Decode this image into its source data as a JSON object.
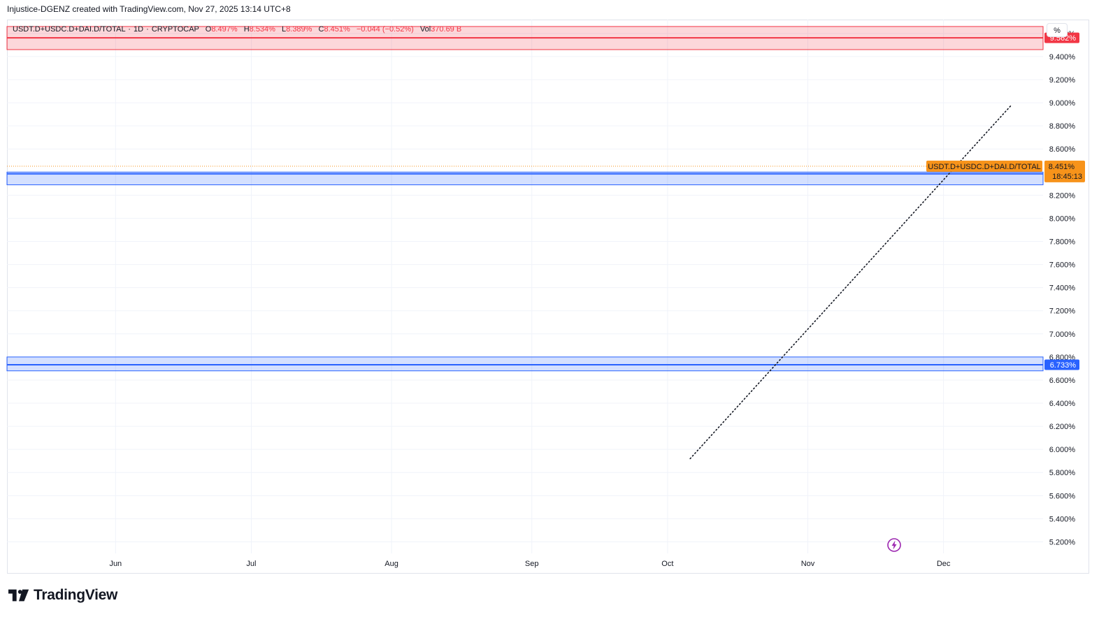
{
  "header": {
    "credit": "Injustice-DGENZ created with TradingView.com, Nov 27, 2025 13:14 UTC+8"
  },
  "legend": {
    "symbol": "USDT.D+USDC.D+DAI.D/TOTAL",
    "interval": "1D",
    "exchange": "CRYPTOCAP",
    "open_label": "O",
    "open_value": "8.497%",
    "high_label": "H",
    "high_value": "8.534%",
    "low_label": "L",
    "low_value": "8.389%",
    "close_label": "C",
    "close_value": "8.451%",
    "change": "−0.044 (−0.52%)",
    "vol_label": "Vol",
    "vol_value": "370.69 B"
  },
  "scale_unit": "%",
  "footer": {
    "brand": "TradingView"
  },
  "colors": {
    "up": "#089981",
    "down": "#f23645",
    "resistance_zone": "#f23645",
    "support_zone": "#2962ff",
    "price_tag": "#f7931a",
    "grid": "#f0f3fa"
  },
  "chart_data": {
    "type": "candlestick",
    "ylim": [
      5.1,
      9.72
    ],
    "y_ticks": [
      "5.200%",
      "5.400%",
      "5.600%",
      "5.800%",
      "6.000%",
      "6.200%",
      "6.400%",
      "6.600%",
      "6.800%",
      "7.000%",
      "7.200%",
      "7.400%",
      "7.600%",
      "7.800%",
      "8.000%",
      "8.200%",
      "8.400%",
      "8.600%",
      "8.800%",
      "9.000%",
      "9.200%",
      "9.400%",
      "9.600%"
    ],
    "x_ticks": [
      "Jun",
      "Jul",
      "Aug",
      "Sep",
      "Oct",
      "Nov",
      "Dec"
    ],
    "x_start": "2025-05-08",
    "x_end": "2025-12-23",
    "resistance_zone": {
      "low": 9.46,
      "high": 9.66,
      "line": 9.562,
      "label": "9.562%"
    },
    "upper_support_zone": {
      "low": 8.29,
      "high": 8.4,
      "line": 8.385,
      "label": "8.385%"
    },
    "lower_support_zone": {
      "low": 6.68,
      "high": 6.8,
      "line": 6.733,
      "label": "6.733%"
    },
    "current_price": {
      "value": 8.451,
      "label": "8.451%",
      "countdown": "18:45:13",
      "symbol_tag": "USDT.D+USDC.D+DAI.D/TOTAL"
    },
    "trendline": {
      "from": {
        "date": "2025-10-06",
        "value": 5.92
      },
      "to": {
        "date": "2025-12-16",
        "value": 8.98
      },
      "style": "dotted"
    },
    "candles": []
  }
}
